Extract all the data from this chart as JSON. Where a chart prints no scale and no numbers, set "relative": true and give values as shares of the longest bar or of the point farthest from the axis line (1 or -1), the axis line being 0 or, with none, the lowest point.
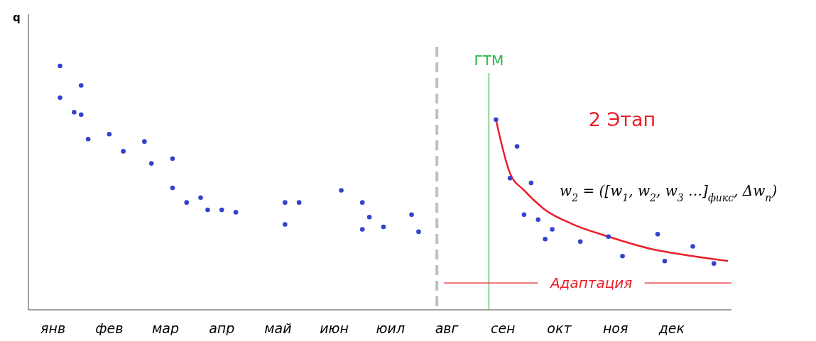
{
  "chart_data": {
    "type": "scatter",
    "ylabel": "q",
    "relative": true,
    "marker": "circle",
    "categories": [
      null,
      null,
      null,
      "янв",
      null,
      null,
      null,
      null,
      null,
      null,
      null,
      "фев",
      null,
      null,
      null,
      null,
      null,
      null,
      null,
      "мар",
      null,
      null,
      null,
      null,
      null,
      null,
      null,
      "апр",
      null,
      null,
      null,
      null,
      null,
      null,
      null,
      "май",
      null,
      null,
      null,
      null,
      null,
      null,
      null,
      "июн",
      null,
      null,
      null,
      null,
      null,
      null,
      null,
      "юил",
      null,
      null,
      null,
      null,
      null,
      null,
      null,
      "авг",
      null,
      null,
      null,
      null,
      null,
      null,
      null,
      "сен",
      null,
      null,
      null,
      null,
      null,
      null,
      null,
      "окт",
      null,
      null,
      null,
      null,
      null,
      null,
      null,
      "ноя",
      null,
      null,
      null,
      null,
      null,
      null,
      null,
      "дек",
      null,
      null,
      null,
      null,
      null,
      null,
      null,
      null
    ],
    "series": [
      {
        "color": "#3344cc",
        "values": [
          null,
          null,
          null,
          null,
          1.0,
          null,
          0.81,
          0.92,
          0.7,
          null,
          null,
          0.72,
          null,
          0.65,
          null,
          null,
          0.69,
          0.6,
          null,
          null,
          0.62,
          null,
          0.44,
          null,
          0.46,
          0.41,
          null,
          0.41,
          null,
          0.4,
          null,
          null,
          null,
          null,
          null,
          null,
          0.44,
          null,
          0.44,
          null,
          null,
          null,
          null,
          null,
          0.49,
          null,
          null,
          0.44,
          0.38,
          null,
          0.34,
          null,
          null,
          null,
          0.39,
          0.32,
          null,
          null,
          null,
          null,
          null,
          null,
          null,
          null,
          null,
          null,
          0.78,
          null,
          0.54,
          0.67,
          0.39,
          0.52,
          0.37,
          0.29,
          0.33,
          null,
          null,
          null,
          0.28,
          null,
          null,
          null,
          0.3,
          null,
          0.22,
          null,
          null,
          null,
          null,
          0.31,
          0.2,
          null,
          null,
          null,
          0.26,
          null,
          null,
          0.19,
          null,
          null
        ]
      },
      {
        "color": "#3344cc",
        "values": [
          null,
          null,
          null,
          null,
          0.87,
          null,
          null,
          0.8,
          null,
          null,
          null,
          null,
          null,
          null,
          null,
          null,
          null,
          null,
          null,
          null,
          0.5,
          null,
          null,
          null,
          null,
          null,
          null,
          null,
          null,
          null,
          null,
          null,
          null,
          null,
          null,
          null,
          0.35,
          null,
          null,
          null,
          null,
          null,
          null,
          null,
          null,
          null,
          null,
          0.33,
          null,
          null,
          null,
          null,
          null,
          null,
          null,
          null,
          null,
          null,
          null,
          null,
          null,
          null,
          null,
          null,
          null,
          null,
          null,
          null,
          null,
          null,
          null,
          null,
          null,
          null,
          null,
          null,
          null,
          null,
          null,
          null,
          null,
          null,
          null,
          null,
          null,
          null,
          null,
          null,
          null,
          null,
          null,
          null,
          null,
          null,
          null,
          null,
          null,
          null,
          null,
          null
        ]
      },
      {
        "type": "line",
        "marker": "none",
        "color": "#e8202a",
        "values": [
          null,
          null,
          null,
          null,
          null,
          null,
          null,
          null,
          null,
          null,
          null,
          null,
          null,
          null,
          null,
          null,
          null,
          null,
          null,
          null,
          null,
          null,
          null,
          null,
          null,
          null,
          null,
          null,
          null,
          null,
          null,
          null,
          null,
          null,
          null,
          null,
          null,
          null,
          null,
          null,
          null,
          null,
          null,
          null,
          null,
          null,
          null,
          null,
          null,
          null,
          null,
          null,
          null,
          null,
          null,
          null,
          null,
          null,
          null,
          null,
          null,
          null,
          null,
          null,
          null,
          null,
          0.78,
          null,
          0.56,
          null,
          0.49,
          null,
          null,
          0.41,
          null,
          null,
          null,
          0.35,
          null,
          null,
          null,
          null,
          0.3,
          null,
          null,
          null,
          null,
          null,
          0.25,
          null,
          null,
          null,
          null,
          null,
          0.22,
          null,
          null,
          null,
          null,
          0.2
        ]
      }
    ],
    "ref_lines": [
      {
        "axis": "y",
        "value": 0.11,
        "label": "Адаптация",
        "color": "#e8202a",
        "line_style": "solid"
      }
    ],
    "annotations": [
      "ГТМ",
      "2 Этап",
      "w$_{2}$ = ([w$_{1}$, w$_{2}$, w$_{3}$ …]$_{фикс}$, Δw$_{n}$)"
    ]
  }
}
